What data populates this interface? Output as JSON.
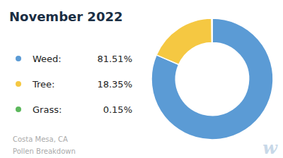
{
  "chart_data": {
    "type": "donut",
    "title": "November 2022",
    "subtitle": [
      "Costa Mesa, CA",
      "Pollen Breakdown"
    ],
    "categories": [
      "Weed:",
      "Tree:",
      "Grass:"
    ],
    "values": [
      81.51,
      18.35,
      0.15
    ],
    "value_labels": [
      "81.51%",
      "18.35%",
      "0.15%"
    ],
    "colors": [
      "#5B9BD5",
      "#F5C842",
      "#5CB85C"
    ],
    "legend": "left",
    "annotations": [
      "w"
    ]
  }
}
